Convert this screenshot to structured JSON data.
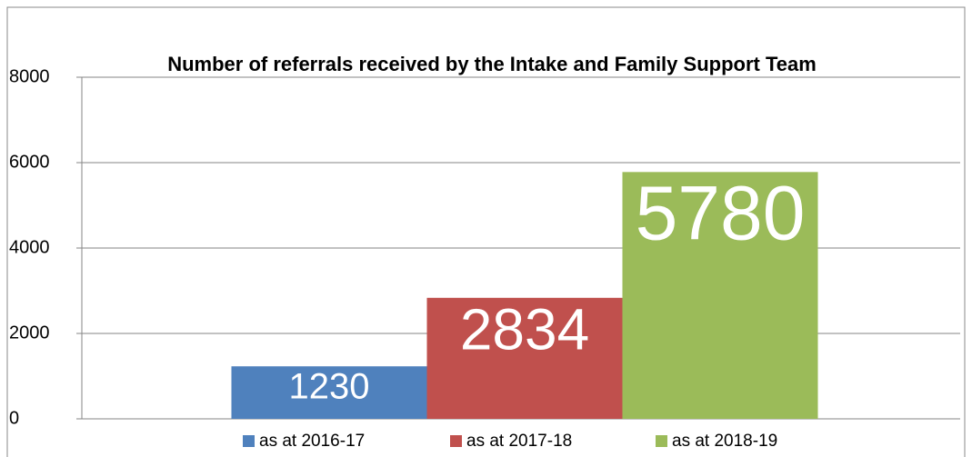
{
  "chart_data": {
    "type": "bar",
    "title": "Number of referrals received by the Intake and Family Support Team",
    "categories": [
      null
    ],
    "series": [
      {
        "name": "as at 2016-17",
        "color": "#4f81bd",
        "values": [
          1230
        ]
      },
      {
        "name": "as at 2017-18",
        "color": "#c0504d",
        "values": [
          2834
        ]
      },
      {
        "name": "as at 2018-19",
        "color": "#9bbb59",
        "values": [
          5780
        ]
      }
    ],
    "ylim": [
      0,
      8000
    ],
    "yticks": [
      0,
      2000,
      4000,
      6000,
      8000
    ],
    "grid": true,
    "legend": "bottom"
  }
}
